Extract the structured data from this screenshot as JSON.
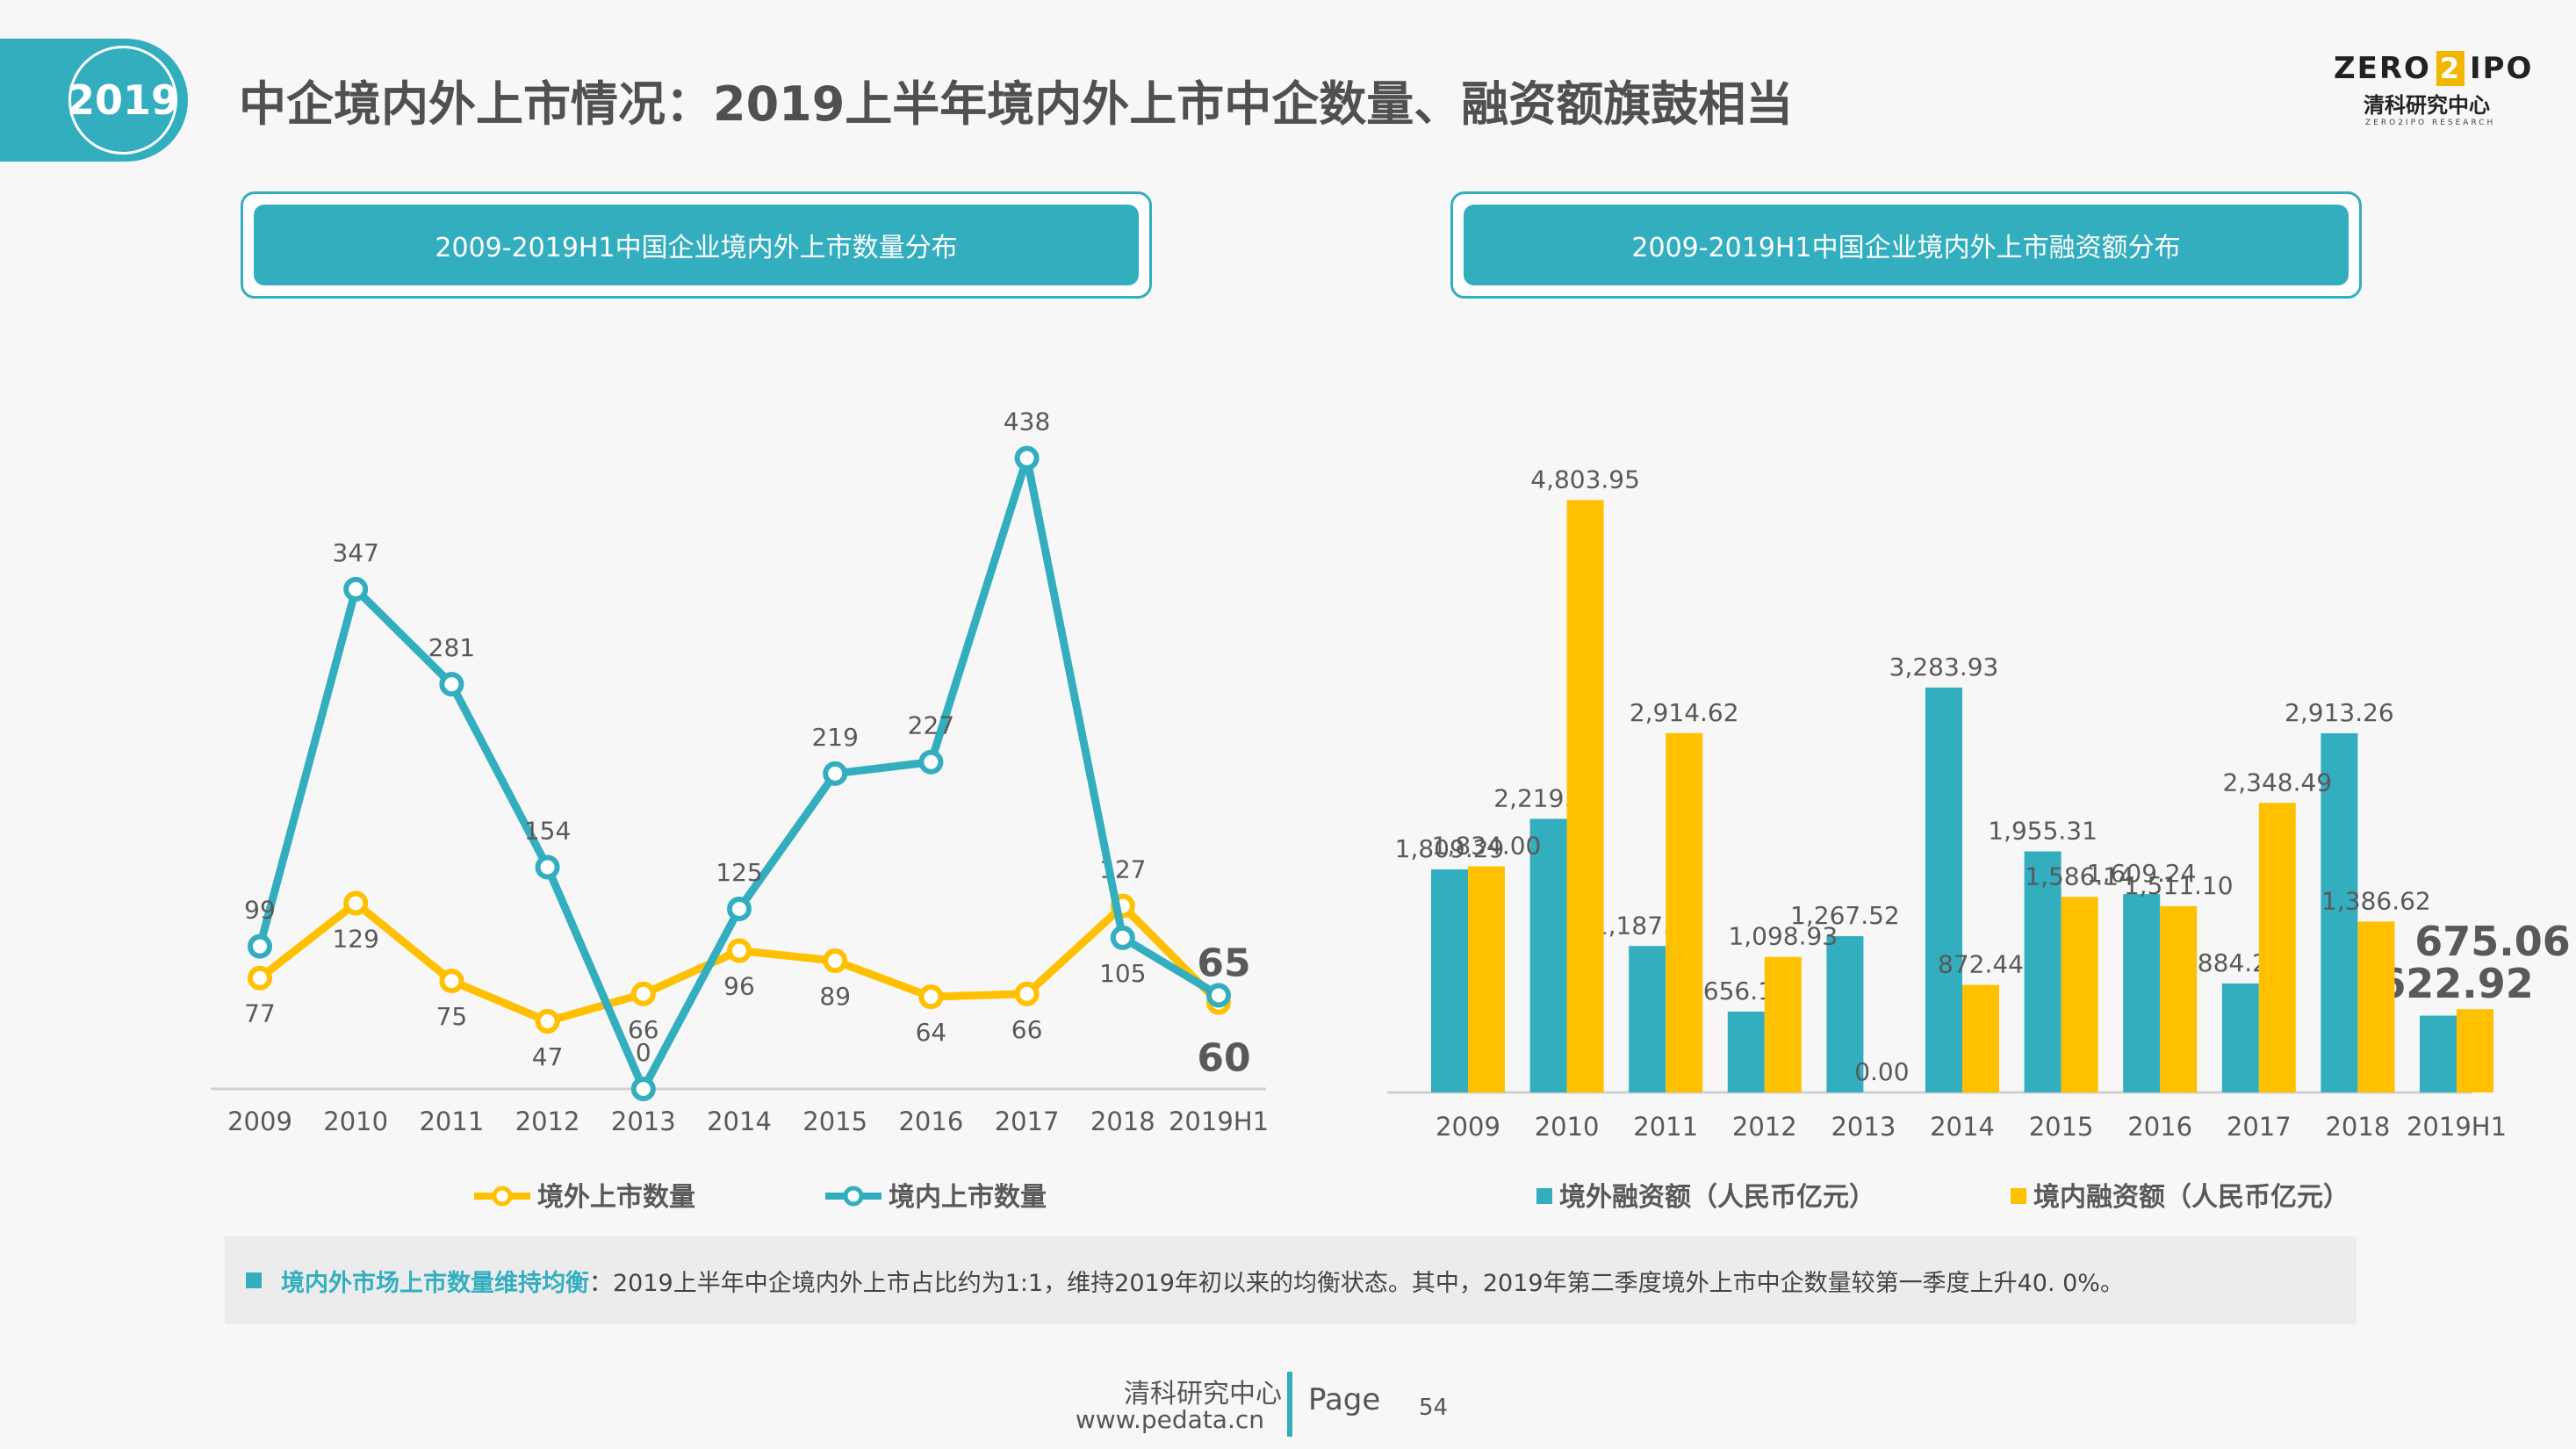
{
  "year_badge": "2019",
  "page_title": "中企境内外上市情况：2019上半年境内外上市中企数量、融资额旗鼓相当",
  "logo": {
    "top_left": "ZERO",
    "top_mid": "2",
    "top_right": "IPO",
    "cn": "清科研究中心",
    "en": "ZERO2IPO RESEARCH"
  },
  "left_header": "2009-2019H1中国企业境内外上市数量分布",
  "right_header": "2009-2019H1中国企业境内外上市融资额分布",
  "chart_data": [
    {
      "type": "line",
      "categories": [
        "2009",
        "2010",
        "2011",
        "2012",
        "2013",
        "2014",
        "2015",
        "2016",
        "2017",
        "2018",
        "2019H1"
      ],
      "series": [
        {
          "name": "境外上市数量",
          "color": "#ffc000",
          "values": [
            77,
            129,
            75,
            47,
            66,
            96,
            89,
            64,
            66,
            127,
            60
          ],
          "labels": [
            "77",
            "129",
            "75",
            "47",
            "66",
            "96",
            "89",
            "64",
            "66",
            "127",
            "60"
          ]
        },
        {
          "name": "境内上市数量",
          "color": "#33aebf",
          "values": [
            99,
            347,
            281,
            154,
            0,
            125,
            219,
            227,
            438,
            105,
            65
          ],
          "labels": [
            "99",
            "347",
            "281",
            "154",
            "0",
            "125",
            "219",
            "227",
            "438",
            "105",
            "65"
          ]
        }
      ],
      "ylim": [
        0,
        500
      ]
    },
    {
      "type": "bar",
      "categories": [
        "2009",
        "2010",
        "2011",
        "2012",
        "2013",
        "2014",
        "2015",
        "2016",
        "2017",
        "2018",
        "2019H1"
      ],
      "series": [
        {
          "name": "境外融资额（人民币亿元）",
          "color": "#33aebf",
          "values": [
            1809.29,
            2219.65,
            1187.53,
            656.16,
            1267.52,
            3283.93,
            1955.31,
            1609.24,
            884.26,
            2913.26,
            622.92
          ],
          "labels": [
            "1,809.29",
            "2,219.65",
            "1,187.53",
            "656.16",
            "1,267.52",
            "3,283.93",
            "1,955.31",
            "1,609.24",
            "884.26",
            "2,913.26",
            "622.92"
          ]
        },
        {
          "name": "境内融资额（人民币亿元）",
          "color": "#ffc000",
          "values": [
            1834.0,
            4803.95,
            2914.62,
            1098.93,
            0.0,
            872.44,
            1586.14,
            1511.1,
            2348.49,
            1386.62,
            675.06
          ],
          "labels": [
            "1,834.00",
            "4,803.95",
            "2,914.62",
            "1,098.93",
            "0.00",
            "872.44",
            "1,586.14",
            "1,511.10",
            "2,348.49",
            "1,386.62",
            "675.06"
          ]
        }
      ],
      "ylim": [
        0,
        5000
      ]
    }
  ],
  "note": {
    "bold": "境内外市场上市数量维持均衡",
    "text": "：2019上半年中企境内外上市占比约为1:1，维持2019年初以来的均衡状态。其中，2019年第二季度境外上市中企数量较第一季度上升40. 0%。"
  },
  "footer": {
    "org": "清科研究中心",
    "url": "www.pedata.cn",
    "page_label": "Page",
    "page_number": "54"
  }
}
